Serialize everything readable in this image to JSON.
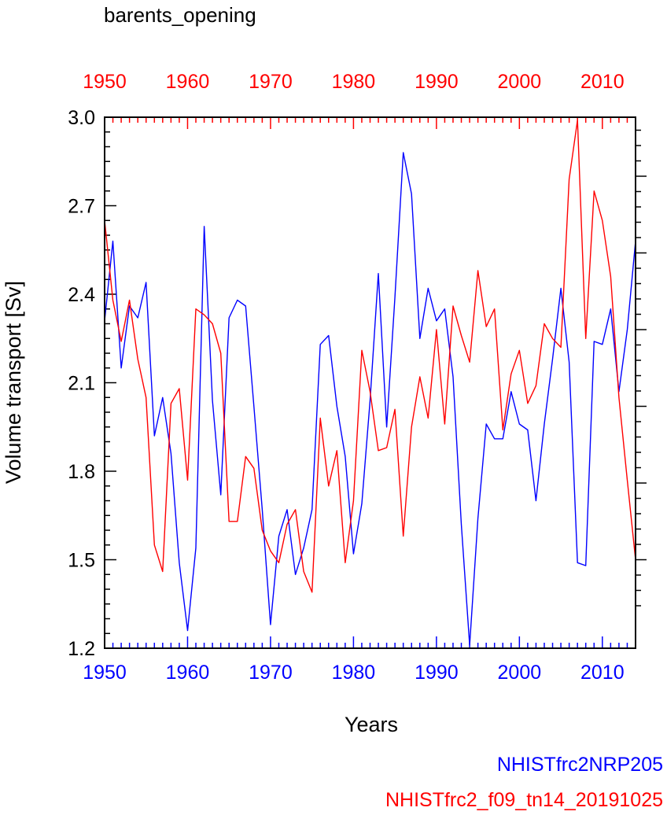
{
  "chart_data": {
    "type": "line",
    "title": "barents_opening",
    "xlabel": "Years",
    "ylabel": "Volume transport [Sv]",
    "xlim": [
      1950,
      2014
    ],
    "ylim": [
      1.2,
      3.0
    ],
    "x_ticks": [
      1950,
      1960,
      1970,
      1980,
      1990,
      2000,
      2010
    ],
    "y_ticks": [
      1.2,
      1.5,
      1.8,
      2.1,
      2.4,
      2.7,
      3.0
    ],
    "y_tick_labels": [
      "1.2",
      "1.5",
      "1.8",
      "2.1",
      "2.4",
      "2.7",
      "3.0"
    ],
    "right_axis_ticks": [
      1.5,
      1.76,
      2.02,
      2.28,
      2.54,
      2.8
    ],
    "grid": false,
    "legend_position": "bottom-right",
    "series": [
      {
        "name": "NHISTfrc2NRP205",
        "color": "#0000ff",
        "x": [
          1950,
          1951,
          1952,
          1953,
          1954,
          1955,
          1956,
          1957,
          1958,
          1959,
          1960,
          1961,
          1962,
          1963,
          1964,
          1965,
          1966,
          1967,
          1968,
          1969,
          1970,
          1971,
          1972,
          1973,
          1974,
          1975,
          1976,
          1977,
          1978,
          1979,
          1980,
          1981,
          1982,
          1983,
          1984,
          1985,
          1986,
          1987,
          1988,
          1989,
          1990,
          1991,
          1992,
          1993,
          1994,
          1995,
          1996,
          1997,
          1998,
          1999,
          2000,
          2001,
          2002,
          2003,
          2004,
          2005,
          2006,
          2007,
          2008,
          2009,
          2010,
          2011,
          2012,
          2013,
          2014
        ],
        "values": [
          2.31,
          2.58,
          2.15,
          2.36,
          2.32,
          2.44,
          1.92,
          2.05,
          1.86,
          1.49,
          1.26,
          1.54,
          2.63,
          2.04,
          1.72,
          2.32,
          2.38,
          2.36,
          2.02,
          1.67,
          1.28,
          1.58,
          1.67,
          1.45,
          1.54,
          1.67,
          2.23,
          2.26,
          2.02,
          1.85,
          1.52,
          1.69,
          2.04,
          2.47,
          1.95,
          2.39,
          2.88,
          2.74,
          2.25,
          2.42,
          2.31,
          2.35,
          2.12,
          1.62,
          1.21,
          1.64,
          1.96,
          1.91,
          1.91,
          2.07,
          1.96,
          1.94,
          1.7,
          1.96,
          2.18,
          2.42,
          2.17,
          1.49,
          1.48,
          2.24,
          2.23,
          2.35,
          2.07,
          2.28,
          2.58
        ]
      },
      {
        "name": "NHISTfrc2_f09_tn14_20191025",
        "color": "#ff0000",
        "x": [
          1950,
          1951,
          1952,
          1953,
          1954,
          1955,
          1956,
          1957,
          1958,
          1959,
          1960,
          1961,
          1962,
          1963,
          1964,
          1965,
          1966,
          1967,
          1968,
          1969,
          1970,
          1971,
          1972,
          1973,
          1974,
          1975,
          1976,
          1977,
          1978,
          1979,
          1980,
          1981,
          1982,
          1983,
          1984,
          1985,
          1986,
          1987,
          1988,
          1989,
          1990,
          1991,
          1992,
          1993,
          1994,
          1995,
          1996,
          1997,
          1998,
          1999,
          2000,
          2001,
          2002,
          2003,
          2004,
          2005,
          2006,
          2007,
          2008,
          2009,
          2010,
          2011,
          2012,
          2013,
          2014
        ],
        "values": [
          2.65,
          2.38,
          2.24,
          2.38,
          2.18,
          2.05,
          1.55,
          1.46,
          2.03,
          2.08,
          1.77,
          2.35,
          2.33,
          2.3,
          2.2,
          1.63,
          1.63,
          1.85,
          1.81,
          1.6,
          1.53,
          1.49,
          1.62,
          1.67,
          1.46,
          1.39,
          1.98,
          1.75,
          1.87,
          1.49,
          1.7,
          2.21,
          2.07,
          1.87,
          1.88,
          2.01,
          1.58,
          1.95,
          2.12,
          1.98,
          2.28,
          1.96,
          2.36,
          2.26,
          2.17,
          2.48,
          2.29,
          2.35,
          1.94,
          2.13,
          2.21,
          2.03,
          2.09,
          2.3,
          2.25,
          2.22,
          2.79,
          2.99,
          2.25,
          2.75,
          2.65,
          2.46,
          2.05,
          1.77,
          1.5
        ]
      }
    ]
  }
}
